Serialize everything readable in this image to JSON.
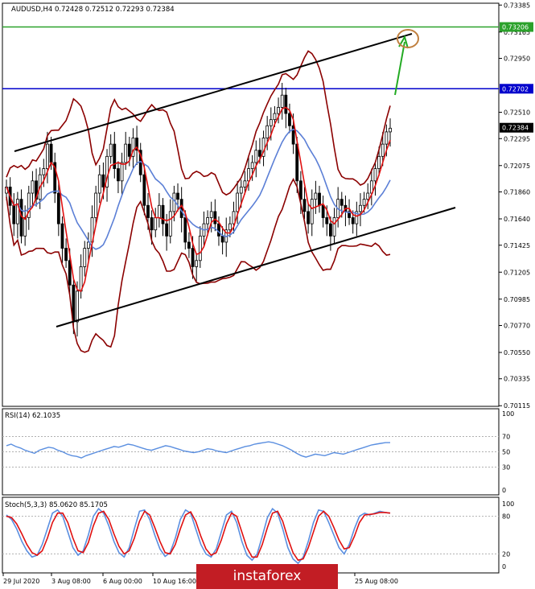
{
  "chart_data": [
    {
      "type": "candlestick",
      "title": "AUDUSD,H4 0.72428 0.72512 0.72293 0.72384",
      "symbol": "AUDUSD",
      "timeframe": "H4",
      "ohlc_readout": {
        "open": 0.72428,
        "high": 0.72512,
        "low": 0.72293,
        "close": 0.72384
      },
      "y_ticks": [
        "0.73385",
        "0.73165",
        "0.72950",
        "0.72510",
        "0.72295",
        "0.72075",
        "0.71860",
        "0.71640",
        "0.71425",
        "0.71205",
        "0.70985",
        "0.70770",
        "0.70550",
        "0.70335",
        "0.70115"
      ],
      "ylim": [
        0.7011,
        0.734
      ],
      "current_price": "0.72384",
      "levels": [
        {
          "label": "0.73206",
          "value": 0.73206,
          "color": "#2aa12a"
        },
        {
          "label": "0.72702",
          "value": 0.72702,
          "color": "#0000cc"
        }
      ],
      "x_ticks": [
        "29 Jul 2020",
        "3 Aug 08:00",
        "6 Aug 00:00",
        "10 Aug 16:00",
        "",
        "25 Aug 08:00"
      ],
      "closes": [
        0.719,
        0.7175,
        0.716,
        0.718,
        0.715,
        0.7165,
        0.7185,
        0.7195,
        0.718,
        0.72,
        0.7205,
        0.7225,
        0.721,
        0.7185,
        0.716,
        0.714,
        0.713,
        0.711,
        0.708,
        0.7105,
        0.7125,
        0.714,
        0.7145,
        0.7165,
        0.7185,
        0.72,
        0.719,
        0.7215,
        0.7225,
        0.7205,
        0.7195,
        0.721,
        0.7225,
        0.7215,
        0.723,
        0.722,
        0.72,
        0.7175,
        0.7165,
        0.7155,
        0.7165,
        0.7175,
        0.716,
        0.715,
        0.717,
        0.7185,
        0.718,
        0.7165,
        0.7145,
        0.714,
        0.7125,
        0.713,
        0.715,
        0.716,
        0.7165,
        0.717,
        0.716,
        0.715,
        0.7145,
        0.7155,
        0.716,
        0.717,
        0.7185,
        0.719,
        0.7195,
        0.7205,
        0.721,
        0.722,
        0.7215,
        0.723,
        0.724,
        0.7245,
        0.725,
        0.7255,
        0.7265,
        0.725,
        0.724,
        0.7225,
        0.7195,
        0.718,
        0.717,
        0.716,
        0.718,
        0.7185,
        0.7175,
        0.7165,
        0.716,
        0.715,
        0.7165,
        0.718,
        0.7175,
        0.717,
        0.7165,
        0.716,
        0.717,
        0.7175,
        0.718,
        0.7185,
        0.7195,
        0.7205,
        0.7215,
        0.7225,
        0.7235,
        0.7238
      ],
      "rsi": {
        "label": "RSI(14) 62.1035",
        "ticks": [
          "100",
          "70",
          "50",
          "30",
          "0"
        ],
        "values": [
          58,
          60,
          57,
          55,
          52,
          50,
          48,
          52,
          54,
          56,
          55,
          52,
          50,
          47,
          45,
          44,
          42,
          45,
          47,
          49,
          51,
          53,
          55,
          57,
          56,
          58,
          60,
          59,
          57,
          55,
          53,
          52,
          54,
          56,
          58,
          57,
          55,
          53,
          51,
          50,
          49,
          50,
          52,
          54,
          53,
          51,
          50,
          49,
          51,
          53,
          55,
          57,
          58,
          60,
          61,
          62,
          63,
          62,
          60,
          58,
          55,
          52,
          48,
          45,
          43,
          45,
          47,
          46,
          45,
          47,
          49,
          48,
          47,
          49,
          51,
          53,
          55,
          57,
          59,
          60,
          61,
          62,
          62
        ]
      },
      "stoch": {
        "label": "Stoch(5,3,3) 85.0620 85.1705",
        "ticks": [
          "100",
          "80",
          "20",
          "0"
        ],
        "main": [
          82,
          75,
          60,
          40,
          25,
          15,
          18,
          35,
          60,
          85,
          90,
          80,
          55,
          30,
          18,
          25,
          50,
          80,
          92,
          85,
          65,
          40,
          22,
          15,
          30,
          60,
          88,
          90,
          75,
          50,
          28,
          16,
          22,
          45,
          75,
          90,
          85,
          60,
          35,
          20,
          15,
          28,
          55,
          82,
          88,
          70,
          40,
          18,
          10,
          20,
          48,
          78,
          92,
          85,
          60,
          30,
          12,
          5,
          15,
          40,
          70,
          90,
          88,
          70,
          50,
          30,
          20,
          35,
          60,
          80,
          85,
          82,
          85,
          88,
          86,
          85
        ],
        "signal": [
          80,
          78,
          68,
          52,
          35,
          22,
          18,
          25,
          45,
          70,
          85,
          85,
          70,
          45,
          25,
          22,
          38,
          65,
          85,
          88,
          75,
          52,
          32,
          20,
          25,
          45,
          72,
          88,
          82,
          62,
          40,
          22,
          20,
          35,
          60,
          82,
          87,
          72,
          48,
          28,
          18,
          22,
          42,
          68,
          85,
          80,
          55,
          30,
          15,
          15,
          35,
          62,
          85,
          88,
          72,
          45,
          22,
          10,
          12,
          30,
          55,
          80,
          88,
          80,
          62,
          42,
          28,
          30,
          48,
          70,
          82,
          83,
          84,
          86,
          86,
          85
        ]
      }
    }
  ],
  "watermark": "instaforex"
}
